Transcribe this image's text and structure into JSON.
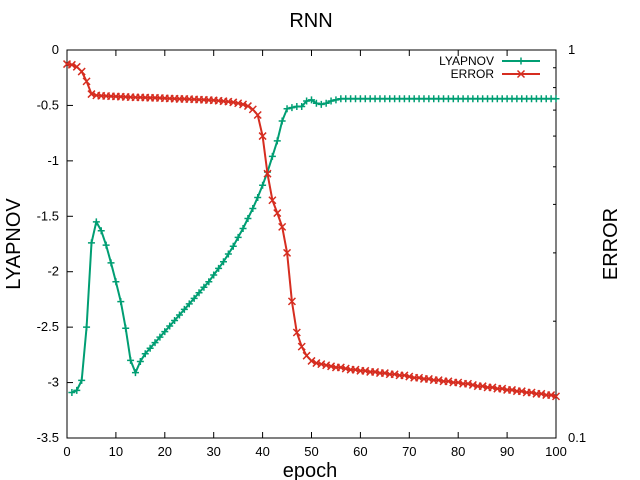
{
  "chart_data": {
    "type": "line",
    "title": "RNN",
    "xlabel": "epoch",
    "ylabel": "LYAPNOV",
    "y2label": "ERROR",
    "xlim": [
      0,
      100
    ],
    "ylim": [
      -3.5,
      0
    ],
    "y2lim": [
      0.1,
      1
    ],
    "y2scale": "log",
    "grid": false,
    "legend_position": "top-right",
    "x_ticks": [
      "0",
      "10",
      "20",
      "30",
      "40",
      "50",
      "60",
      "70",
      "80",
      "90",
      "100"
    ],
    "y_ticks": [
      "0",
      "-0.5",
      "-1",
      "-1.5",
      "-2",
      "-2.5",
      "-3",
      "-3.5"
    ],
    "y2_ticks": [
      "1",
      "0.1"
    ],
    "series": [
      {
        "name": "LYAPNOV",
        "axis": "y",
        "color": "#009e73",
        "marker": "plus",
        "x": [
          1,
          2,
          3,
          4,
          5,
          6,
          7,
          8,
          9,
          10,
          11,
          12,
          13,
          14,
          15,
          16,
          17,
          18,
          19,
          20,
          21,
          22,
          23,
          24,
          25,
          26,
          27,
          28,
          29,
          30,
          31,
          32,
          33,
          34,
          35,
          36,
          37,
          38,
          39,
          40,
          41,
          42,
          43,
          44,
          45,
          46,
          47,
          48,
          49,
          50,
          51,
          52,
          53,
          54,
          55,
          56,
          57,
          58,
          59,
          60,
          61,
          62,
          63,
          64,
          65,
          66,
          67,
          68,
          69,
          70,
          71,
          72,
          73,
          74,
          75,
          76,
          77,
          78,
          79,
          80,
          81,
          82,
          83,
          84,
          85,
          86,
          87,
          88,
          89,
          90,
          91,
          92,
          93,
          94,
          95,
          96,
          97,
          98,
          99,
          100
        ],
        "values": [
          -3.09,
          -3.07,
          -2.98,
          -2.5,
          -1.74,
          -1.55,
          -1.63,
          -1.76,
          -1.92,
          -2.09,
          -2.27,
          -2.51,
          -2.8,
          -2.91,
          -2.81,
          -2.74,
          -2.69,
          -2.64,
          -2.59,
          -2.54,
          -2.49,
          -2.44,
          -2.39,
          -2.34,
          -2.29,
          -2.24,
          -2.19,
          -2.14,
          -2.09,
          -2.03,
          -1.97,
          -1.91,
          -1.84,
          -1.77,
          -1.69,
          -1.61,
          -1.52,
          -1.43,
          -1.33,
          -1.22,
          -1.1,
          -0.96,
          -0.82,
          -0.64,
          -0.53,
          -0.52,
          -0.51,
          -0.51,
          -0.46,
          -0.45,
          -0.48,
          -0.49,
          -0.48,
          -0.46,
          -0.45,
          -0.44,
          -0.44,
          -0.44,
          -0.44,
          -0.44,
          -0.44,
          -0.44,
          -0.44,
          -0.44,
          -0.44,
          -0.44,
          -0.44,
          -0.44,
          -0.44,
          -0.44,
          -0.44,
          -0.44,
          -0.44,
          -0.44,
          -0.44,
          -0.44,
          -0.44,
          -0.44,
          -0.44,
          -0.44,
          -0.44,
          -0.44,
          -0.44,
          -0.44,
          -0.44,
          -0.44,
          -0.44,
          -0.44,
          -0.44,
          -0.44,
          -0.44,
          -0.44,
          -0.44,
          -0.44,
          -0.44,
          -0.44,
          -0.44,
          -0.44,
          -0.44,
          -0.44
        ]
      },
      {
        "name": "ERROR",
        "axis": "y2",
        "color": "#d62d20",
        "marker": "cross",
        "x": [
          0,
          1,
          2,
          3,
          4,
          5,
          6,
          7,
          8,
          9,
          10,
          11,
          12,
          13,
          14,
          15,
          16,
          17,
          18,
          19,
          20,
          21,
          22,
          23,
          24,
          25,
          26,
          27,
          28,
          29,
          30,
          31,
          32,
          33,
          34,
          35,
          36,
          37,
          38,
          39,
          40,
          41,
          42,
          43,
          44,
          45,
          46,
          47,
          48,
          49,
          50,
          51,
          52,
          53,
          54,
          55,
          56,
          57,
          58,
          59,
          60,
          61,
          62,
          63,
          64,
          65,
          66,
          67,
          68,
          69,
          70,
          71,
          72,
          73,
          74,
          75,
          76,
          77,
          78,
          79,
          80,
          81,
          82,
          83,
          84,
          85,
          86,
          87,
          88,
          89,
          90,
          91,
          92,
          93,
          94,
          95,
          96,
          97,
          98,
          99,
          100
        ],
        "values": [
          0.92,
          0.916,
          0.905,
          0.88,
          0.83,
          0.77,
          0.764,
          0.762,
          0.761,
          0.76,
          0.759,
          0.758,
          0.757,
          0.756,
          0.755,
          0.755,
          0.754,
          0.753,
          0.753,
          0.752,
          0.751,
          0.75,
          0.749,
          0.748,
          0.748,
          0.747,
          0.746,
          0.745,
          0.744,
          0.743,
          0.742,
          0.74,
          0.738,
          0.736,
          0.733,
          0.729,
          0.724,
          0.717,
          0.703,
          0.68,
          0.6,
          0.48,
          0.41,
          0.38,
          0.35,
          0.3,
          0.225,
          0.187,
          0.172,
          0.163,
          0.158,
          0.156,
          0.155,
          0.154,
          0.153,
          0.152,
          0.152,
          0.151,
          0.15,
          0.15,
          0.149,
          0.149,
          0.148,
          0.148,
          0.147,
          0.147,
          0.146,
          0.146,
          0.145,
          0.145,
          0.144,
          0.143,
          0.143,
          0.142,
          0.142,
          0.141,
          0.141,
          0.14,
          0.14,
          0.139,
          0.139,
          0.138,
          0.138,
          0.137,
          0.136,
          0.136,
          0.135,
          0.135,
          0.134,
          0.134,
          0.133,
          0.133,
          0.132,
          0.132,
          0.131,
          0.131,
          0.13,
          0.13,
          0.129,
          0.129,
          0.128
        ]
      }
    ]
  }
}
